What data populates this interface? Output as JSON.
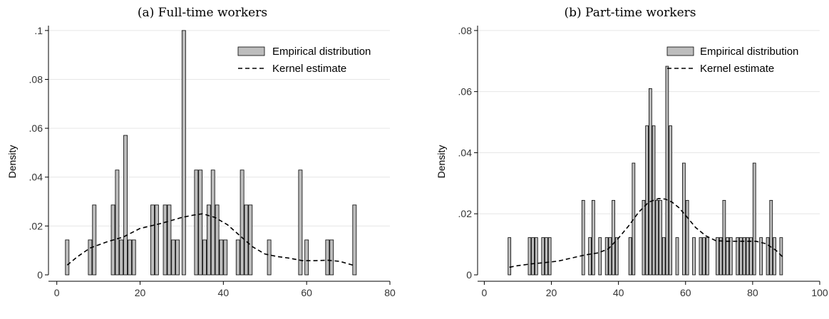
{
  "chart_data": [
    {
      "type": "bar",
      "title": "(a) Full-time workers",
      "xlabel": "",
      "ylabel": "Density",
      "xlim": [
        -2,
        80
      ],
      "ylim": [
        0,
        0.102
      ],
      "xticks": [
        0,
        20,
        40,
        60,
        80
      ],
      "xtick_labels": [
        "0",
        "20",
        "40",
        "60",
        "80"
      ],
      "yticks": [
        0,
        0.02,
        0.04,
        0.06,
        0.08,
        0.1
      ],
      "ytick_labels": [
        "0",
        ".02",
        ".04",
        ".06",
        ".08",
        ".1"
      ],
      "grid": true,
      "legend_position": "top-right",
      "bar_width": 1,
      "series": [
        {
          "name": "Empirical distribution",
          "kind": "histogram",
          "x": [
            2.5,
            8,
            9,
            13.5,
            14.5,
            15.5,
            16.5,
            17.5,
            18.5,
            23,
            24,
            26,
            27,
            28,
            29,
            30.5,
            33.5,
            34.5,
            35.5,
            36.5,
            37.5,
            38.5,
            39.5,
            40.5,
            43.5,
            44.5,
            45.5,
            46.5,
            51,
            58.5,
            60,
            65,
            66,
            71.5
          ],
          "values": [
            0.0143,
            0.0143,
            0.0286,
            0.0286,
            0.0429,
            0.0143,
            0.0571,
            0.0143,
            0.0143,
            0.0286,
            0.0286,
            0.0286,
            0.0286,
            0.0143,
            0.0143,
            0.1,
            0.0429,
            0.0429,
            0.0143,
            0.0286,
            0.0429,
            0.0286,
            0.0143,
            0.0143,
            0.0143,
            0.0429,
            0.0286,
            0.0286,
            0.0143,
            0.0429,
            0.0143,
            0.0143,
            0.0143,
            0.0286
          ]
        },
        {
          "name": "Kernel estimate",
          "kind": "line",
          "x": [
            2.5,
            5,
            8,
            12,
            16,
            20,
            25,
            30,
            33,
            35,
            38,
            41,
            44,
            47,
            50,
            53,
            56,
            59,
            62,
            65,
            68,
            71.5
          ],
          "values": [
            0.004,
            0.0075,
            0.011,
            0.0135,
            0.0155,
            0.019,
            0.021,
            0.0235,
            0.0245,
            0.025,
            0.0235,
            0.0205,
            0.016,
            0.0115,
            0.0085,
            0.0075,
            0.0068,
            0.0058,
            0.0058,
            0.006,
            0.0055,
            0.0038
          ]
        }
      ]
    },
    {
      "type": "bar",
      "title": "(b) Part-time workers",
      "xlabel": "",
      "ylabel": "Density",
      "xlim": [
        -2,
        100
      ],
      "ylim": [
        0,
        0.0816
      ],
      "xticks": [
        0,
        20,
        40,
        60,
        80,
        100
      ],
      "xtick_labels": [
        "0",
        "20",
        "40",
        "60",
        "80",
        "100"
      ],
      "yticks": [
        0,
        0.02,
        0.04,
        0.06,
        0.08
      ],
      "ytick_labels": [
        "0",
        ".02",
        ".04",
        ".06",
        ".08"
      ],
      "grid": true,
      "legend_position": "top-right",
      "bar_width": 1,
      "series": [
        {
          "name": "Empirical distribution",
          "kind": "histogram",
          "x": [
            7.5,
            13.5,
            14.5,
            15.5,
            17.5,
            18.5,
            19.5,
            29.5,
            31.5,
            32.5,
            34.5,
            36.5,
            37.5,
            38.5,
            39.5,
            43.5,
            44.5,
            47.5,
            48.5,
            49.5,
            50.5,
            51.5,
            52.5,
            53.5,
            54.5,
            55.5,
            57.5,
            59.5,
            60.5,
            62.5,
            64.5,
            65.5,
            66.5,
            69.5,
            70.5,
            71.5,
            72.5,
            73.5,
            75.5,
            76.5,
            77.5,
            78.5,
            79.5,
            80.5,
            82.5,
            84.5,
            85.5,
            86.5,
            88.5
          ],
          "values": [
            0.0122,
            0.0122,
            0.0122,
            0.0122,
            0.0122,
            0.0122,
            0.0122,
            0.0244,
            0.0122,
            0.0244,
            0.0122,
            0.0122,
            0.0122,
            0.0244,
            0.0122,
            0.0122,
            0.0366,
            0.0244,
            0.0488,
            0.061,
            0.0488,
            0.0244,
            0.0244,
            0.0122,
            0.0683,
            0.0488,
            0.0122,
            0.0366,
            0.0244,
            0.0122,
            0.0122,
            0.0122,
            0.0122,
            0.0122,
            0.0122,
            0.0244,
            0.0122,
            0.0122,
            0.0122,
            0.0122,
            0.0122,
            0.0122,
            0.0122,
            0.0366,
            0.0122,
            0.0122,
            0.0244,
            0.0122,
            0.0122
          ]
        },
        {
          "name": "Kernel estimate",
          "kind": "line",
          "x": [
            7.5,
            10,
            14,
            18,
            22,
            26,
            30,
            34,
            37,
            40,
            43,
            46,
            49,
            52,
            54,
            56,
            58,
            60,
            63,
            66,
            69,
            72,
            75,
            78,
            81,
            84,
            87,
            89
          ],
          "values": [
            0.0025,
            0.003,
            0.0036,
            0.004,
            0.0045,
            0.0055,
            0.0065,
            0.0072,
            0.0085,
            0.012,
            0.016,
            0.0205,
            0.0238,
            0.025,
            0.0248,
            0.0238,
            0.022,
            0.0195,
            0.0155,
            0.0128,
            0.0112,
            0.011,
            0.011,
            0.011,
            0.011,
            0.0102,
            0.008,
            0.0058
          ]
        }
      ]
    }
  ]
}
